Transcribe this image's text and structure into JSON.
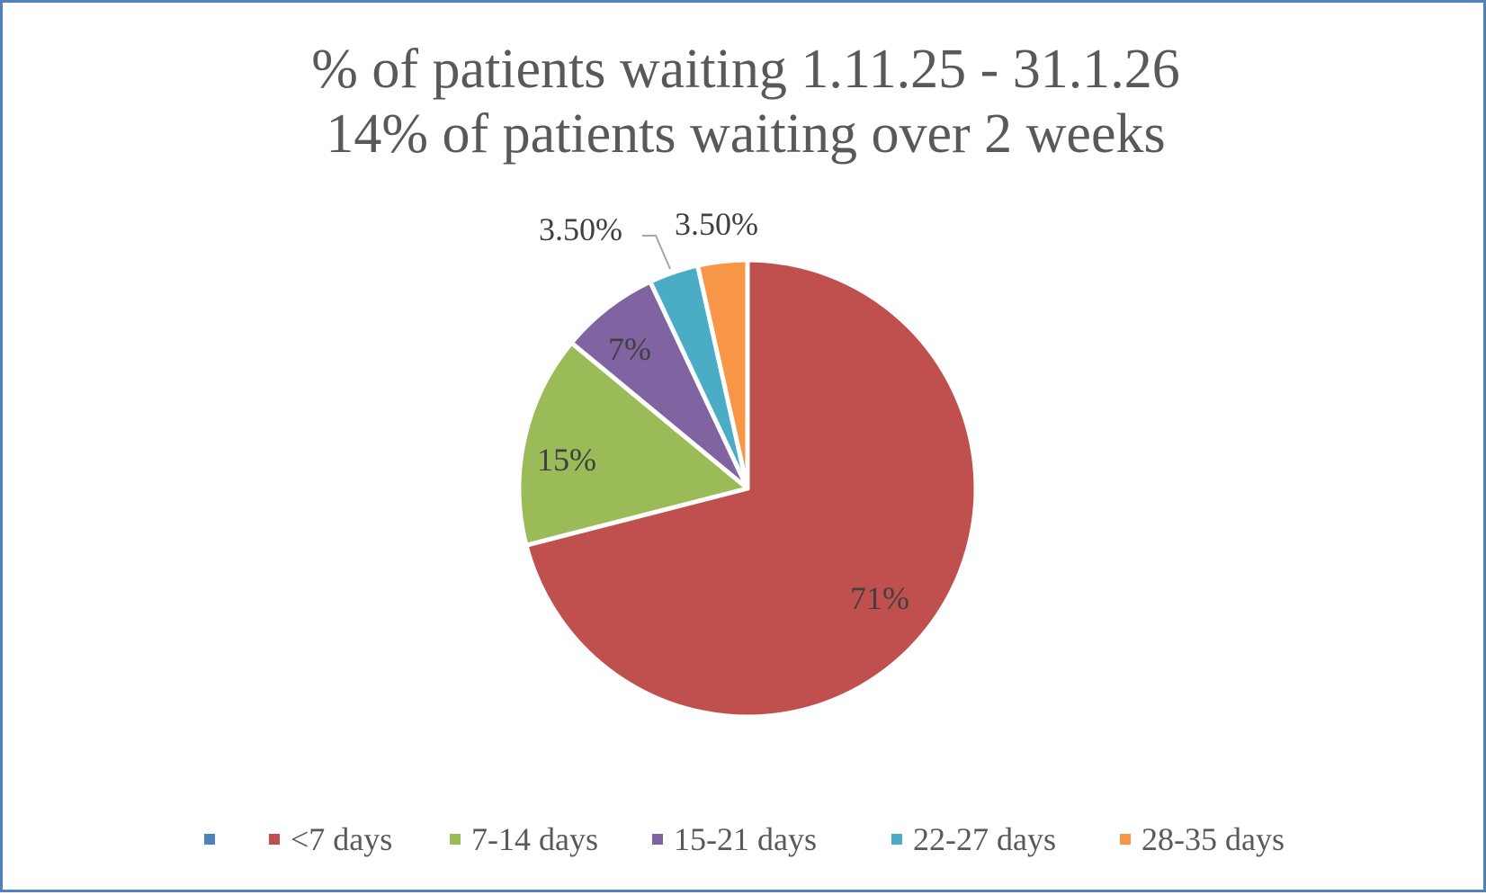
{
  "chart_data": {
    "type": "pie",
    "title": "% of patients waiting 1.11.25 - 31.1.26",
    "subtitle": "14% of patients waiting over 2 weeks",
    "categories": [
      "",
      "<7 days",
      "7-14 days",
      "15-21 days",
      "22-27 days",
      "28-35 days"
    ],
    "values": [
      0,
      71,
      15,
      7,
      3.5,
      3.5
    ],
    "data_labels": [
      "",
      "71%",
      "15%",
      "7%",
      "3.50%",
      "3.50%"
    ],
    "colors": [
      "#4f81bd",
      "#c0504d",
      "#9bbb59",
      "#8064a2",
      "#4bacc6",
      "#f79646"
    ],
    "start_angle_deg": 0,
    "direction": "clockwise",
    "legend_position": "bottom",
    "unit": "%"
  },
  "title": {
    "line1": "% of patients waiting 1.11.25 - 31.1.26",
    "line2": "14% of patients waiting over 2 weeks"
  },
  "labels": {
    "lt7": "71%",
    "d7_14": "15%",
    "d15_21": "7%",
    "d22_27": "3.50%",
    "d28_35": "3.50%"
  },
  "legend": {
    "items": [
      {
        "label": "",
        "color": "#4f81bd"
      },
      {
        "label": "<7 days",
        "color": "#c0504d"
      },
      {
        "label": "7-14 days",
        "color": "#9bbb59"
      },
      {
        "label": "15-21 days",
        "color": "#8064a2"
      },
      {
        "label": "22-27 days",
        "color": "#4bacc6"
      },
      {
        "label": "28-35 days",
        "color": "#f79646"
      }
    ]
  },
  "colors": {
    "border": "#4f81bd",
    "title_text": "#595959",
    "label_text": "#404040",
    "leader_line": "#a6a6a6"
  }
}
